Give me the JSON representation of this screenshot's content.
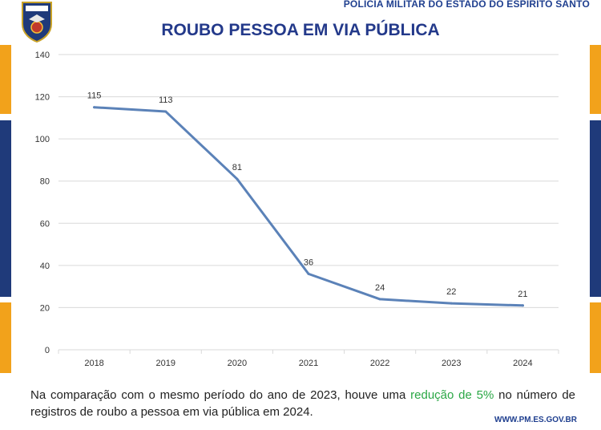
{
  "header": {
    "agency": "POLÍCIA MILITAR DO ESTADO DO ESPÍRITO SANTO",
    "website": "WWW.PM.ES.GOV.BR"
  },
  "footer": {
    "text_before": "Na comparação com o mesmo período do ano de 2023, houve uma ",
    "highlight": "redução de 5%",
    "text_after": " no número de registros de roubo a pessoa em via pública em 2024."
  },
  "colors": {
    "line": "#5b82b8",
    "title": "#23398a",
    "highlight": "#2aa745",
    "orange": "#f2a21b",
    "navy": "#1f3a7a"
  },
  "chart_data": {
    "type": "line",
    "title": "ROUBO PESSOA EM VIA PÚBLICA",
    "categories": [
      "2018",
      "2019",
      "2020",
      "2021",
      "2022",
      "2023",
      "2024"
    ],
    "values": [
      115,
      113,
      81,
      36,
      24,
      22,
      21
    ],
    "ylim": [
      0,
      140
    ],
    "yticks": [
      0,
      20,
      40,
      60,
      80,
      100,
      120,
      140
    ],
    "grid": true,
    "legend": "none",
    "xlabel": "",
    "ylabel": ""
  }
}
